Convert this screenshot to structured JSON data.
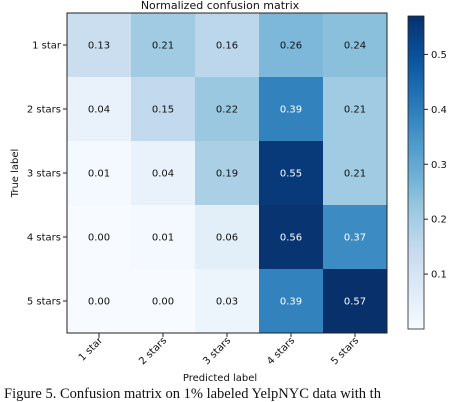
{
  "chart_data": {
    "type": "heatmap",
    "title": "Normalized confusion matrix",
    "xlabel": "Predicted label",
    "ylabel": "True label",
    "x_categories": [
      "1 star",
      "2 stars",
      "3 stars",
      "4 stars",
      "5 stars"
    ],
    "y_categories": [
      "1 star",
      "2 stars",
      "3 stars",
      "4 stars",
      "5 stars"
    ],
    "values": [
      [
        0.13,
        0.21,
        0.16,
        0.26,
        0.24
      ],
      [
        0.04,
        0.15,
        0.22,
        0.39,
        0.21
      ],
      [
        0.01,
        0.04,
        0.19,
        0.55,
        0.21
      ],
      [
        0.0,
        0.01,
        0.06,
        0.56,
        0.37
      ],
      [
        0.0,
        0.0,
        0.03,
        0.39,
        0.57
      ]
    ],
    "colormap": "Blues",
    "colorbar": {
      "vmin": 0.0,
      "vmax": 0.57,
      "ticks": [
        0.1,
        0.2,
        0.3,
        0.4,
        0.5
      ]
    }
  },
  "caption": "Figure 5. Confusion matrix on 1% labeled YelpNYC data with th"
}
